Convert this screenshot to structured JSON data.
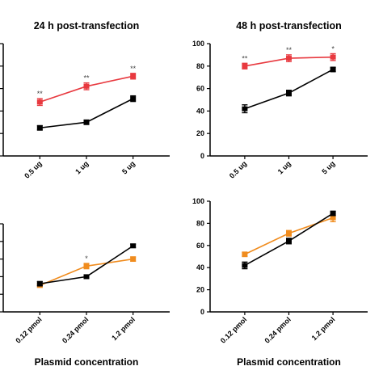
{
  "chart_data": [
    {
      "type": "line",
      "title": "24 h post-transfection",
      "xlabel": "",
      "ylabel": "",
      "categories": [
        "0.5 ug",
        "1 ug",
        "5 ug"
      ],
      "ylim": [
        0,
        100
      ],
      "yticks": [
        0,
        20,
        40,
        60,
        80,
        100
      ],
      "show_ytick_labels": false,
      "series": [
        {
          "color": "#e8393f",
          "values": [
            48,
            62,
            71
          ],
          "errors": [
            3,
            3,
            2.5
          ],
          "annotations": [
            "**",
            "**",
            "**"
          ]
        },
        {
          "color": "#000000",
          "values": [
            25,
            30,
            51
          ],
          "errors": [
            2,
            2,
            2.5
          ],
          "annotations": [
            "",
            "",
            ""
          ]
        }
      ]
    },
    {
      "type": "line",
      "title": "48 h post-transfection",
      "xlabel": "",
      "ylabel": "",
      "categories": [
        "0.5 ug",
        "1 ug",
        "5 ug"
      ],
      "ylim": [
        0,
        100
      ],
      "yticks": [
        0,
        20,
        40,
        60,
        80,
        100
      ],
      "show_ytick_labels": true,
      "series": [
        {
          "color": "#e8393f",
          "values": [
            80,
            87,
            88
          ],
          "errors": [
            2.5,
            3,
            3
          ],
          "annotations": [
            "**",
            "**",
            "*"
          ]
        },
        {
          "color": "#000000",
          "values": [
            42,
            56,
            77
          ],
          "errors": [
            3.5,
            2.5,
            2
          ],
          "annotations": [
            "",
            "",
            ""
          ]
        }
      ]
    },
    {
      "type": "line",
      "title": "",
      "xlabel": "Plasmid concentration",
      "ylabel": "",
      "categories": [
        "0.12 pmol",
        "0.24 pmol",
        "1.2 pmol"
      ],
      "ylim": [
        0,
        100
      ],
      "yticks": [
        0,
        20,
        40,
        60,
        80,
        100
      ],
      "show_ytick_labels": false,
      "series": [
        {
          "color": "#f08c1e",
          "values": [
            30,
            52,
            60
          ],
          "errors": [
            2,
            3,
            2.5
          ],
          "annotations": [
            "",
            "*",
            ""
          ]
        },
        {
          "color": "#000000",
          "values": [
            32,
            40,
            75
          ],
          "errors": [
            2.5,
            2,
            2
          ],
          "annotations": [
            "",
            "",
            ""
          ]
        }
      ]
    },
    {
      "type": "line",
      "title": "",
      "xlabel": "Plasmid concentration",
      "ylabel": "",
      "categories": [
        "0.12 pmol",
        "0.24 pmol",
        "1.2 pmol"
      ],
      "ylim": [
        0,
        100
      ],
      "yticks": [
        0,
        20,
        40,
        60,
        80,
        100
      ],
      "show_ytick_labels": true,
      "series": [
        {
          "color": "#f08c1e",
          "values": [
            52,
            71,
            85
          ],
          "errors": [
            2,
            2.5,
            3.5
          ],
          "annotations": [
            "",
            "",
            ""
          ]
        },
        {
          "color": "#000000",
          "values": [
            42,
            64,
            89
          ],
          "errors": [
            3,
            2.5,
            2
          ],
          "annotations": [
            "",
            "",
            ""
          ]
        }
      ]
    }
  ]
}
